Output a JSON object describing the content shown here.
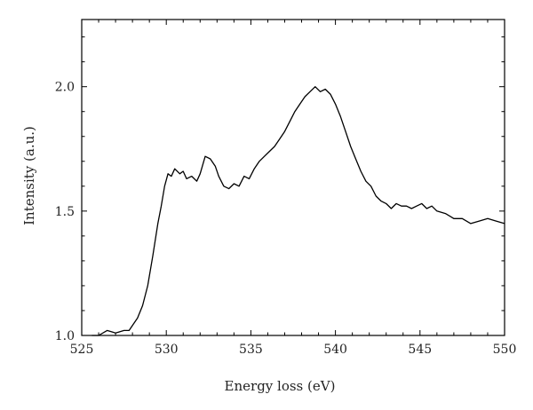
{
  "chart_data": {
    "type": "line",
    "title": "",
    "xlabel": "Energy loss (eV)",
    "ylabel": "Intensity (a.u.)",
    "xlim": [
      525,
      550
    ],
    "ylim": [
      1.0,
      2.27
    ],
    "xticks": [
      525,
      530,
      535,
      540,
      545,
      550
    ],
    "xtick_labels": [
      "525",
      "530",
      "535",
      "540",
      "545",
      "550"
    ],
    "yticks": [
      1.0,
      1.5,
      2.0
    ],
    "ytick_labels": [
      "1.0",
      "1.5",
      "2.0"
    ],
    "grid": false,
    "series": [
      {
        "x": [
          525.6,
          526.0,
          526.5,
          527.0,
          527.5,
          527.8,
          528.0,
          528.3,
          528.6,
          528.9,
          529.2,
          529.5,
          529.7,
          529.9,
          530.1,
          530.3,
          530.5,
          530.8,
          531.0,
          531.2,
          531.5,
          531.8,
          532.0,
          532.3,
          532.6,
          532.9,
          533.1,
          533.4,
          533.7,
          534.0,
          534.3,
          534.6,
          534.9,
          535.2,
          535.5,
          535.8,
          536.1,
          536.4,
          536.7,
          537.0,
          537.3,
          537.6,
          537.9,
          538.2,
          538.5,
          538.8,
          539.1,
          539.4,
          539.7,
          540.0,
          540.3,
          540.6,
          540.9,
          541.2,
          541.5,
          541.8,
          542.1,
          542.4,
          542.7,
          543.0,
          543.3,
          543.6,
          543.9,
          544.2,
          544.5,
          544.8,
          545.1,
          545.4,
          545.7,
          546.0,
          546.5,
          547.0,
          547.5,
          548.0,
          548.5,
          549.0,
          549.5,
          550.0
        ],
        "values": [
          1.0,
          1.0,
          1.02,
          1.01,
          1.02,
          1.02,
          1.04,
          1.07,
          1.12,
          1.2,
          1.32,
          1.45,
          1.52,
          1.6,
          1.65,
          1.64,
          1.67,
          1.65,
          1.66,
          1.63,
          1.64,
          1.62,
          1.65,
          1.72,
          1.71,
          1.68,
          1.64,
          1.6,
          1.59,
          1.61,
          1.6,
          1.64,
          1.63,
          1.67,
          1.7,
          1.72,
          1.74,
          1.76,
          1.79,
          1.82,
          1.86,
          1.9,
          1.93,
          1.96,
          1.98,
          2.0,
          1.98,
          1.99,
          1.97,
          1.93,
          1.88,
          1.82,
          1.76,
          1.71,
          1.66,
          1.62,
          1.6,
          1.56,
          1.54,
          1.53,
          1.51,
          1.53,
          1.52,
          1.52,
          1.51,
          1.52,
          1.53,
          1.51,
          1.52,
          1.5,
          1.49,
          1.47,
          1.47,
          1.45,
          1.46,
          1.47,
          1.46,
          1.45
        ]
      }
    ]
  }
}
